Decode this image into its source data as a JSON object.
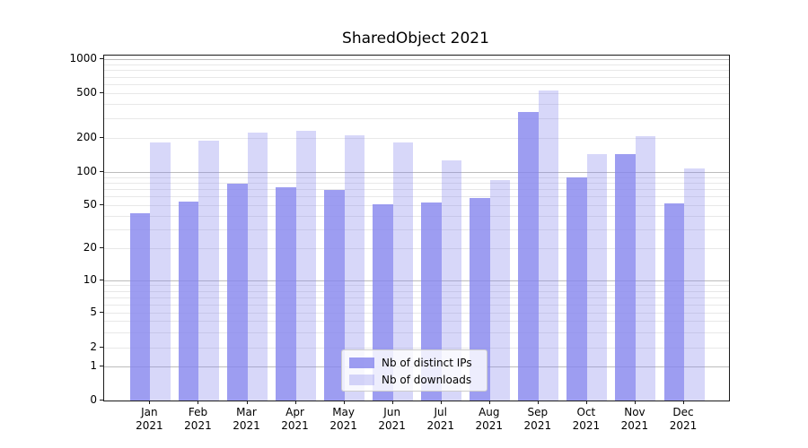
{
  "chart_data": {
    "type": "bar",
    "title": "SharedObject 2021",
    "categories": [
      "Jan 2021",
      "Feb 2021",
      "Mar 2021",
      "Apr 2021",
      "May 2021",
      "Jun 2021",
      "Jul 2021",
      "Aug 2021",
      "Sep 2021",
      "Oct 2021",
      "Nov 2021",
      "Dec 2021"
    ],
    "series": [
      {
        "name": "Nb of distinct IPs",
        "color": "rgba(133,133,238,0.8)",
        "values": [
          42,
          54,
          78,
          73,
          69,
          51,
          53,
          58,
          338,
          89,
          143,
          52
        ]
      },
      {
        "name": "Nb of downloads",
        "color": "rgba(133,133,238,0.33)",
        "values": [
          183,
          191,
          222,
          230,
          211,
          184,
          126,
          84,
          530,
          145,
          208,
          107
        ]
      }
    ],
    "xlabel": "",
    "ylabel": "",
    "yscale": "symlog",
    "yticks": [
      0,
      1,
      2,
      5,
      10,
      20,
      50,
      100,
      200,
      500,
      1000
    ],
    "ylim": [
      0,
      1100
    ],
    "grid": true,
    "legend_position": "lower center",
    "colors": {
      "bar_dark": "rgba(133,133,238,0.8)",
      "bar_light": "rgba(133,133,238,0.33)",
      "grid_major": "#bcbcbc",
      "grid_minor": "#e8e8e8",
      "axis": "#1a1a1a",
      "legend_border": "#cccccc"
    }
  }
}
